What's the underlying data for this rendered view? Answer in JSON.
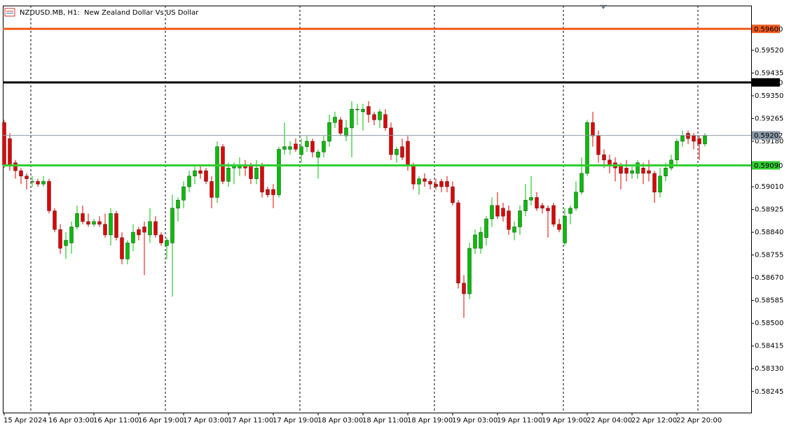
{
  "chart_data": {
    "type": "candlestick",
    "title": "NZDUSD.MB, H1:  New Zealand Dollar Vs US Dollar",
    "categories": [
      "15 Apr 2024",
      null,
      null,
      null,
      null,
      null,
      null,
      null,
      "16 Apr 03:00",
      null,
      null,
      null,
      null,
      null,
      null,
      null,
      "16 Apr 11:00",
      null,
      null,
      null,
      null,
      null,
      null,
      null,
      "16 Apr 19:00",
      null,
      null,
      null,
      null,
      null,
      null,
      null,
      "17 Apr 03:00",
      null,
      null,
      null,
      null,
      null,
      null,
      null,
      "17 Apr 11:00",
      null,
      null,
      null,
      null,
      null,
      null,
      null,
      "17 Apr 19:00",
      null,
      null,
      null,
      null,
      null,
      null,
      null,
      "18 Apr 03:00",
      null,
      null,
      null,
      null,
      null,
      null,
      null,
      "18 Apr 11:00",
      null,
      null,
      null,
      null,
      null,
      null,
      null,
      "18 Apr 19:00",
      null,
      null,
      null,
      null,
      null,
      null,
      null,
      "19 Apr 03:00",
      null,
      null,
      null,
      null,
      null,
      null,
      null,
      "19 Apr 11:00",
      null,
      null,
      null,
      null,
      null,
      null,
      null,
      "19 Apr 19:00",
      null,
      null,
      null,
      null,
      null,
      null,
      null,
      "22 Apr 04:00",
      null,
      null,
      null,
      null,
      null,
      null,
      null,
      "22 Apr 12:00",
      null,
      null,
      null,
      null,
      null,
      null,
      null,
      "22 Apr 20:00",
      null,
      null,
      null,
      null,
      null
    ],
    "open": [
      0.5925,
      0.5919,
      0.591,
      0.5907,
      0.5905,
      0.5903,
      0.5903,
      0.5902,
      0.5903,
      0.5892,
      0.5885,
      0.5879,
      0.588,
      0.5886,
      0.5891,
      0.5888,
      0.5887,
      0.5888,
      0.5887,
      0.5883,
      0.5891,
      0.5882,
      0.5874,
      0.588,
      0.5885,
      0.5886,
      0.5883,
      0.5888,
      0.5883,
      0.5879,
      0.588,
      0.5893,
      0.5896,
      0.5901,
      0.5905,
      0.5907,
      0.5907,
      0.5903,
      0.5897,
      0.5916,
      0.5903,
      0.5908,
      0.5908,
      0.5909,
      0.5909,
      0.5904,
      0.5909,
      0.59,
      0.59,
      0.5898,
      0.5915,
      0.5915,
      0.5917,
      0.5913,
      0.5916,
      0.5918,
      0.5912,
      0.5914,
      0.5918,
      0.5925,
      0.5926,
      0.592,
      0.5923,
      0.593,
      0.5929,
      0.5931,
      0.5928,
      0.5926,
      0.5928,
      0.5923,
      0.5913,
      0.5916,
      0.5918,
      0.5909,
      0.5902,
      0.5904,
      0.5903,
      0.5902,
      0.5903,
      0.5903,
      0.5901,
      0.5895,
      0.5865,
      0.5861,
      0.5878,
      0.5878,
      0.5882,
      0.5889,
      0.5894,
      0.5893,
      0.5892,
      0.5884,
      0.5886,
      0.5892,
      0.5896,
      0.5897,
      0.5894,
      0.5893,
      0.5894,
      0.5887,
      0.588,
      0.5891,
      0.5893,
      0.5899,
      0.5906,
      0.5925,
      0.592,
      0.5913,
      0.5911,
      0.591,
      0.5909,
      0.5908,
      0.5906,
      0.5906,
      0.5908,
      0.5907,
      0.5906,
      0.5899,
      0.5905,
      0.5908,
      0.5911,
      0.5918,
      0.5921,
      0.592,
      0.5919,
      0.5917
    ],
    "high": [
      0.5926,
      0.5921,
      0.5911,
      0.5908,
      0.5906,
      0.5905,
      0.5904,
      0.5905,
      0.5904,
      0.5893,
      0.5887,
      0.5884,
      0.5888,
      0.5894,
      0.5894,
      0.5891,
      0.5889,
      0.589,
      0.5891,
      0.5893,
      0.5892,
      0.5884,
      0.5881,
      0.5887,
      0.5886,
      0.5888,
      0.5893,
      0.589,
      0.5884,
      0.5882,
      0.5898,
      0.5897,
      0.5903,
      0.5907,
      0.5909,
      0.5909,
      0.5908,
      0.5905,
      0.5918,
      0.5917,
      0.591,
      0.591,
      0.5912,
      0.5911,
      0.591,
      0.5911,
      0.591,
      0.5901,
      0.5902,
      0.5916,
      0.5925,
      0.5918,
      0.5919,
      0.5919,
      0.592,
      0.5919,
      0.5915,
      0.592,
      0.5928,
      0.5929,
      0.5927,
      0.5926,
      0.5933,
      0.5932,
      0.5932,
      0.5933,
      0.5929,
      0.593,
      0.593,
      0.5925,
      0.5916,
      0.5919,
      0.592,
      0.591,
      0.5905,
      0.5906,
      0.5904,
      0.5904,
      0.5904,
      0.5905,
      0.5903,
      0.5896,
      0.5868,
      0.588,
      0.5885,
      0.5886,
      0.589,
      0.5897,
      0.5899,
      0.5895,
      0.5894,
      0.5888,
      0.5894,
      0.5902,
      0.5905,
      0.5899,
      0.5895,
      0.5894,
      0.5895,
      0.5889,
      0.5893,
      0.5894,
      0.5903,
      0.5912,
      0.5926,
      0.5929,
      0.5922,
      0.5915,
      0.5913,
      0.5912,
      0.591,
      0.5911,
      0.5909,
      0.5911,
      0.591,
      0.5911,
      0.5907,
      0.5908,
      0.591,
      0.5913,
      0.5919,
      0.5922,
      0.5922,
      0.5921,
      0.592,
      0.5921
    ],
    "low": [
      0.5908,
      0.5907,
      0.5904,
      0.5902,
      0.59,
      0.5901,
      0.5901,
      0.5901,
      0.5891,
      0.5884,
      0.5876,
      0.5874,
      0.5876,
      0.5885,
      0.5887,
      0.5886,
      0.5886,
      0.5886,
      0.5882,
      0.5879,
      0.5881,
      0.5872,
      0.5872,
      0.5877,
      0.5881,
      0.5868,
      0.588,
      0.5882,
      0.5879,
      0.5874,
      0.586,
      0.5888,
      0.5893,
      0.5899,
      0.5902,
      0.5904,
      0.5902,
      0.5893,
      0.5895,
      0.5902,
      0.5901,
      0.5902,
      0.5905,
      0.5905,
      0.5902,
      0.5902,
      0.5897,
      0.5897,
      0.5893,
      0.5897,
      0.5913,
      0.5913,
      0.5914,
      0.591,
      0.5914,
      0.5912,
      0.5904,
      0.5912,
      0.5916,
      0.5923,
      0.592,
      0.5918,
      0.5912,
      0.5924,
      0.5922,
      0.5925,
      0.5924,
      0.5923,
      0.5922,
      0.5911,
      0.591,
      0.5911,
      0.5907,
      0.59,
      0.5898,
      0.5901,
      0.59,
      0.59,
      0.5899,
      0.5899,
      0.5894,
      0.5863,
      0.5852,
      0.5859,
      0.5876,
      0.5876,
      0.5879,
      0.5886,
      0.5889,
      0.5888,
      0.5883,
      0.5881,
      0.5883,
      0.589,
      0.5894,
      0.5892,
      0.5891,
      0.5882,
      0.5886,
      0.5884,
      0.5879,
      0.5887,
      0.5892,
      0.5898,
      0.5905,
      0.5916,
      0.591,
      0.5908,
      0.5906,
      0.5903,
      0.59,
      0.5903,
      0.5904,
      0.5904,
      0.5902,
      0.5903,
      0.5895,
      0.5897,
      0.5903,
      0.5907,
      0.5909,
      0.5916,
      0.5917,
      0.5915,
      0.5911,
      0.5916
    ],
    "close": [
      0.5909,
      0.5909,
      0.5907,
      0.5905,
      0.5904,
      0.5903,
      0.5902,
      0.5903,
      0.5892,
      0.5885,
      0.5878,
      0.5881,
      0.5886,
      0.5891,
      0.5888,
      0.5887,
      0.5888,
      0.5887,
      0.5883,
      0.5891,
      0.5882,
      0.5874,
      0.588,
      0.5884,
      0.5883,
      0.5884,
      0.5888,
      0.5883,
      0.588,
      0.5881,
      0.5893,
      0.5896,
      0.5901,
      0.5905,
      0.5907,
      0.5906,
      0.5903,
      0.5897,
      0.5916,
      0.5903,
      0.5908,
      0.5909,
      0.5909,
      0.5908,
      0.5904,
      0.5908,
      0.5899,
      0.5898,
      0.5898,
      0.5915,
      0.5916,
      0.5916,
      0.5915,
      0.5916,
      0.5918,
      0.5914,
      0.5914,
      0.5918,
      0.5925,
      0.5927,
      0.5921,
      0.5923,
      0.593,
      0.593,
      0.593,
      0.5928,
      0.5926,
      0.5929,
      0.5923,
      0.5913,
      0.5915,
      0.5912,
      0.5909,
      0.5902,
      0.5904,
      0.5903,
      0.5902,
      0.5901,
      0.5901,
      0.5901,
      0.5895,
      0.5865,
      0.5861,
      0.5878,
      0.5883,
      0.5884,
      0.5889,
      0.5894,
      0.589,
      0.589,
      0.5885,
      0.5886,
      0.5892,
      0.5896,
      0.5897,
      0.5893,
      0.5893,
      0.5892,
      0.5887,
      0.5885,
      0.589,
      0.5893,
      0.5899,
      0.5906,
      0.5925,
      0.592,
      0.5913,
      0.5911,
      0.5909,
      0.5908,
      0.5906,
      0.5906,
      0.5907,
      0.591,
      0.5906,
      0.5906,
      0.5899,
      0.5905,
      0.5908,
      0.5911,
      0.5918,
      0.592,
      0.5919,
      0.5918,
      0.5917,
      0.592
    ],
    "up_color": "#00c000",
    "down_color": "#e00000",
    "ylim": [
      0.58166,
      0.59687
    ],
    "yticks": [
      {
        "value": 0.5952,
        "label": "0.59520"
      },
      {
        "value": 0.59435,
        "label": "0.59435"
      },
      {
        "value": 0.5935,
        "label": "0.59350"
      },
      {
        "value": 0.59265,
        "label": "0.59265"
      },
      {
        "value": 0.5918,
        "label": "0.59180"
      },
      {
        "value": 0.5901,
        "label": "0.59010"
      },
      {
        "value": 0.58925,
        "label": "0.58925"
      },
      {
        "value": 0.5884,
        "label": "0.58840"
      },
      {
        "value": 0.58755,
        "label": "0.58755"
      },
      {
        "value": 0.5867,
        "label": "0.58670"
      },
      {
        "value": 0.58585,
        "label": "0.58585"
      },
      {
        "value": 0.585,
        "label": "0.58500"
      },
      {
        "value": 0.58415,
        "label": "0.58415"
      },
      {
        "value": 0.5833,
        "label": "0.58330"
      },
      {
        "value": 0.58245,
        "label": "0.58245"
      }
    ],
    "levels": [
      {
        "value": 0.596,
        "label": "0.59600",
        "color": "#f05a1e"
      },
      {
        "value": 0.594,
        "label": "0.59400",
        "color": "#000000"
      },
      {
        "value": 0.5909,
        "label": "0.59090",
        "color": "#32cd32"
      },
      {
        "value": 0.59202,
        "label": "0.59202",
        "color": "#8c9aa8"
      }
    ]
  }
}
